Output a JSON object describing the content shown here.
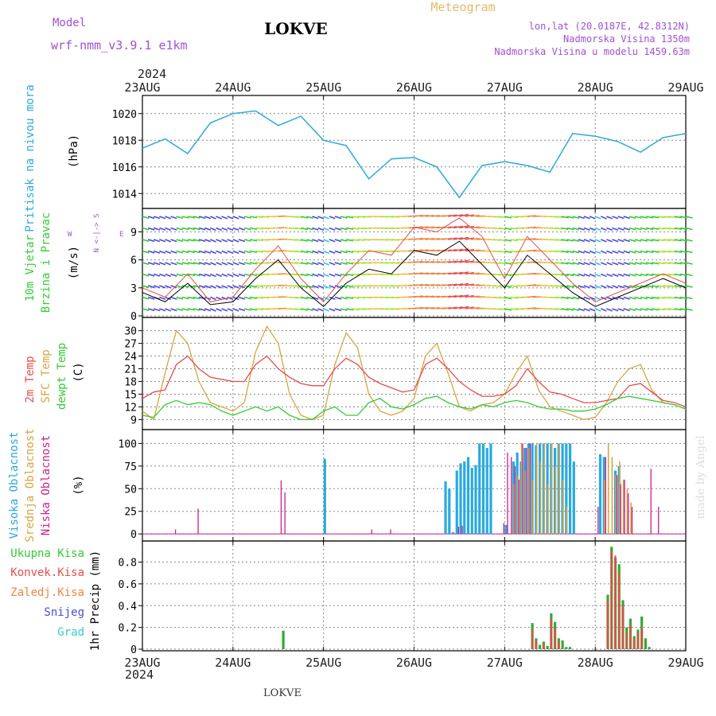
{
  "header": {
    "model_label": "Model",
    "model_name": "wrf-nmm_v3.9.1 e1km",
    "station": "LOKVE",
    "meteogram_label": "Meteogram",
    "lonlat": "lon,lat (20.0187E, 42.8312N)",
    "elevation": "Nadmorska Visina 1350m",
    "model_elevation": "Nadmorska Visina u modelu 1459.63m",
    "year": "2024"
  },
  "footer": {
    "station": "LOKVE",
    "watermark": "made by Angel"
  },
  "panels": {
    "pressure": {
      "title": "Pritisak na nivou mora",
      "unit": "(hPa)"
    },
    "wind": {
      "title1": "10m Vjetar",
      "title2": "Brzina i Pravac",
      "unit": "(m/s)",
      "compass": "N <-|-> S",
      "compass_w": "W",
      "compass_e": "E"
    },
    "temp": {
      "label_2m": "2m Temp",
      "label_sfc": "SFC Temp",
      "label_dewpt": "dewpt Temp",
      "unit": "(C)"
    },
    "cloud": {
      "label_high": "Visoka Oblacnost",
      "label_mid": "Srednja Oblacnost",
      "label_low": "Niska Oblacnost",
      "unit": "(%)"
    },
    "precip": {
      "label_total": "Ukupna Kisa",
      "label_conv": "Konvek.Kisa",
      "label_frz": "Zaledj.Kisa",
      "label_snow": "Snijeg",
      "label_grad": "Grad",
      "unit": "1hr Precip (mm)"
    }
  },
  "colors": {
    "pressure": "#29a9e0",
    "temp_2m": "#e84b4b",
    "temp_sfc": "#d9a441",
    "dewpt": "#33cc33",
    "cloud_high": "#29a9e0",
    "cloud_mid": "#d9a441",
    "cloud_low": "#cc1f8a",
    "precip_total": "#33aa33",
    "precip_conv": "#e84b4b",
    "wind_speed": "#000000",
    "wind_gust": "#e84b4b"
  },
  "chart_data": [
    {
      "type": "line",
      "panel": "pressure",
      "x_categories": [
        "23AUG",
        "24AUG",
        "25AUG",
        "26AUG",
        "27AUG",
        "28AUG",
        "29AUG"
      ],
      "x_hours": [
        0,
        6,
        12,
        18,
        24,
        30,
        36,
        42,
        48,
        54,
        60,
        66,
        72,
        78,
        84,
        90,
        96,
        102,
        108,
        114,
        120,
        126,
        132,
        138,
        144
      ],
      "y": [
        1017.4,
        1018.1,
        1017.0,
        1019.3,
        1020.0,
        1020.2,
        1019.1,
        1019.8,
        1018.0,
        1017.6,
        1015.1,
        1016.6,
        1016.7,
        1016.0,
        1013.7,
        1016.1,
        1016.4,
        1016.1,
        1015.6,
        1018.5,
        1018.3,
        1017.9,
        1017.1,
        1018.2,
        1018.5
      ],
      "ylabel": "(hPa)",
      "yticks": [
        1014,
        1016,
        1018,
        1020
      ],
      "ylim": [
        1013,
        1021
      ],
      "grid": true
    },
    {
      "type": "line",
      "panel": "wind",
      "x_hours": [
        0,
        6,
        12,
        18,
        24,
        30,
        36,
        42,
        48,
        54,
        60,
        66,
        72,
        78,
        84,
        90,
        96,
        102,
        108,
        114,
        120,
        126,
        132,
        138,
        144
      ],
      "series": [
        {
          "speed": [
            2.5,
            1.5,
            3.5,
            1.2,
            1.5,
            4.0,
            6.0,
            3.0,
            1.0,
            3.5,
            5.0,
            4.5,
            7.0,
            6.5,
            8.0,
            5.5,
            3.0,
            6.5,
            4.5,
            2.5,
            1.0,
            2.0,
            3.0,
            4.0,
            3.0
          ]
        },
        {
          "gust": [
            3.0,
            2.0,
            4.5,
            1.5,
            2.0,
            5.0,
            7.5,
            4.0,
            1.5,
            4.5,
            7.0,
            6.5,
            9.5,
            9.0,
            10.5,
            8.5,
            4.0,
            8.5,
            6.0,
            3.5,
            1.5,
            2.5,
            3.5,
            4.5,
            3.5
          ]
        }
      ],
      "ylabel": "(m/s)",
      "yticks": [
        0,
        3,
        6,
        9
      ],
      "ylim": [
        0,
        11
      ],
      "grid": true
    },
    {
      "type": "line",
      "panel": "temperature",
      "x_hours": [
        0,
        3,
        6,
        9,
        12,
        15,
        18,
        21,
        24,
        27,
        30,
        33,
        36,
        39,
        42,
        45,
        48,
        51,
        54,
        57,
        60,
        63,
        66,
        69,
        72,
        75,
        78,
        81,
        84,
        87,
        90,
        93,
        96,
        99,
        102,
        105,
        108,
        111,
        114,
        117,
        120,
        123,
        126,
        129,
        132,
        135,
        138,
        141,
        144
      ],
      "series": [
        {
          "name": "2m Temp",
          "values": [
            14,
            15.5,
            16,
            22,
            24,
            21,
            19,
            18.5,
            18,
            18,
            22,
            24,
            21,
            19,
            17.5,
            17,
            17,
            21,
            23.5,
            22,
            19,
            17.5,
            16.5,
            15.5,
            16,
            22,
            23.5,
            21,
            18,
            16,
            14.5,
            14.5,
            15,
            17,
            21,
            18,
            15.5,
            15,
            14,
            13,
            13,
            13.5,
            14,
            17,
            17.5,
            15.5,
            13.5,
            13,
            12
          ]
        },
        {
          "name": "SFC Temp",
          "values": [
            11,
            9,
            20,
            30,
            27,
            18,
            13,
            12,
            11,
            13,
            25,
            31,
            27,
            15,
            10,
            9,
            10,
            22,
            29.5,
            26,
            15,
            11,
            10,
            11,
            14,
            24,
            27,
            20,
            12,
            11,
            12.5,
            13,
            15,
            20,
            24,
            16,
            12,
            11,
            10,
            9,
            9.5,
            13,
            18,
            21,
            22,
            16,
            13,
            12.5,
            11.5
          ]
        },
        {
          "name": "dewpt Temp",
          "values": [
            10,
            9.5,
            12.5,
            13.5,
            12.5,
            13,
            12.5,
            11,
            10,
            11,
            12,
            11,
            12,
            10,
            9,
            9,
            11,
            12,
            10,
            10,
            13,
            14,
            12,
            11.5,
            12.5,
            14,
            14.5,
            13,
            12,
            11.5,
            12.5,
            12,
            13,
            13.5,
            13,
            12,
            11.5,
            11.5,
            11,
            11,
            11.5,
            12.5,
            14,
            14.5,
            14,
            13.5,
            13,
            12.5,
            11.5
          ]
        }
      ],
      "ylabel": "(C)",
      "yticks": [
        9,
        12,
        15,
        18,
        21,
        24,
        27,
        30
      ],
      "ylim": [
        7,
        32
      ],
      "grid": true
    },
    {
      "type": "bar",
      "panel": "cloud",
      "ylabel": "(%)",
      "yticks": [
        0,
        25,
        50,
        75,
        100
      ],
      "ylim": [
        0,
        100
      ],
      "series": [
        {
          "name": "Visoka Oblacnost",
          "hours": [
            48,
            80,
            81,
            82,
            83,
            84,
            85,
            86,
            87,
            88,
            89,
            90,
            91,
            92,
            96,
            98,
            99,
            100,
            101,
            102,
            103,
            104,
            105,
            106,
            107,
            108,
            109,
            110,
            111,
            112,
            113,
            114,
            121,
            122,
            125,
            126
          ],
          "values": [
            83,
            58,
            50,
            2,
            70,
            78,
            80,
            85,
            73,
            76,
            100,
            100,
            95,
            100,
            10,
            80,
            90,
            80,
            95,
            100,
            100,
            98,
            100,
            100,
            100,
            100,
            95,
            100,
            100,
            100,
            100,
            80,
            88,
            85,
            70,
            75
          ]
        },
        {
          "name": "Srednja Oblacnost",
          "hours": [
            98,
            99,
            100,
            101,
            102,
            103,
            104,
            105,
            106,
            107,
            108,
            109,
            110,
            111,
            112,
            122,
            123,
            124,
            125,
            126,
            127,
            128,
            129
          ],
          "values": [
            55,
            65,
            100,
            70,
            95,
            60,
            100,
            80,
            100,
            55,
            100,
            75,
            100,
            60,
            30,
            60,
            100,
            85,
            65,
            80,
            60,
            50,
            35
          ]
        },
        {
          "name": "Niska Oblacnost",
          "hours": [
            8,
            14,
            36,
            37,
            60,
            65,
            83,
            84,
            95,
            96,
            97,
            98,
            99,
            100,
            101,
            102,
            120,
            122,
            125,
            126,
            127,
            128,
            129,
            134,
            136
          ],
          "values": [
            5,
            28,
            59,
            46,
            5,
            5,
            8,
            9,
            12,
            90,
            85,
            75,
            60,
            100,
            95,
            100,
            30,
            85,
            65,
            55,
            60,
            45,
            30,
            72,
            30
          ]
        }
      ],
      "grid": true
    },
    {
      "type": "bar",
      "panel": "precip",
      "ylabel": "1hr Precip (mm)",
      "yticks": [
        0,
        0.2,
        0.4,
        0.6,
        0.8
      ],
      "ylim": [
        0,
        0.95
      ],
      "series": [
        {
          "name": "Ukupna Kisa",
          "hours": [
            37,
            103,
            104,
            105,
            106,
            107,
            108,
            109,
            110,
            111,
            112,
            113,
            123,
            124,
            125,
            126,
            127,
            128,
            129,
            130,
            131,
            132,
            133,
            134
          ],
          "values": [
            0.17,
            0.24,
            0.1,
            0.04,
            0.07,
            0.03,
            0.33,
            0.25,
            0.1,
            0.08,
            0.02,
            0.02,
            0.5,
            0.94,
            0.84,
            0.78,
            0.45,
            0.2,
            0.28,
            0.12,
            0.18,
            0.3,
            0.1,
            0.02
          ]
        },
        {
          "name": "Konvek.Kisa",
          "hours": [
            103,
            104,
            106,
            108,
            109,
            110,
            123,
            124,
            125,
            126,
            127,
            128,
            129,
            130,
            131,
            132
          ],
          "values": [
            0.18,
            0.08,
            0.05,
            0.28,
            0.2,
            0.07,
            0.45,
            0.9,
            0.86,
            0.7,
            0.4,
            0.15,
            0.22,
            0.1,
            0.15,
            0.2
          ]
        }
      ],
      "grid": true
    }
  ]
}
